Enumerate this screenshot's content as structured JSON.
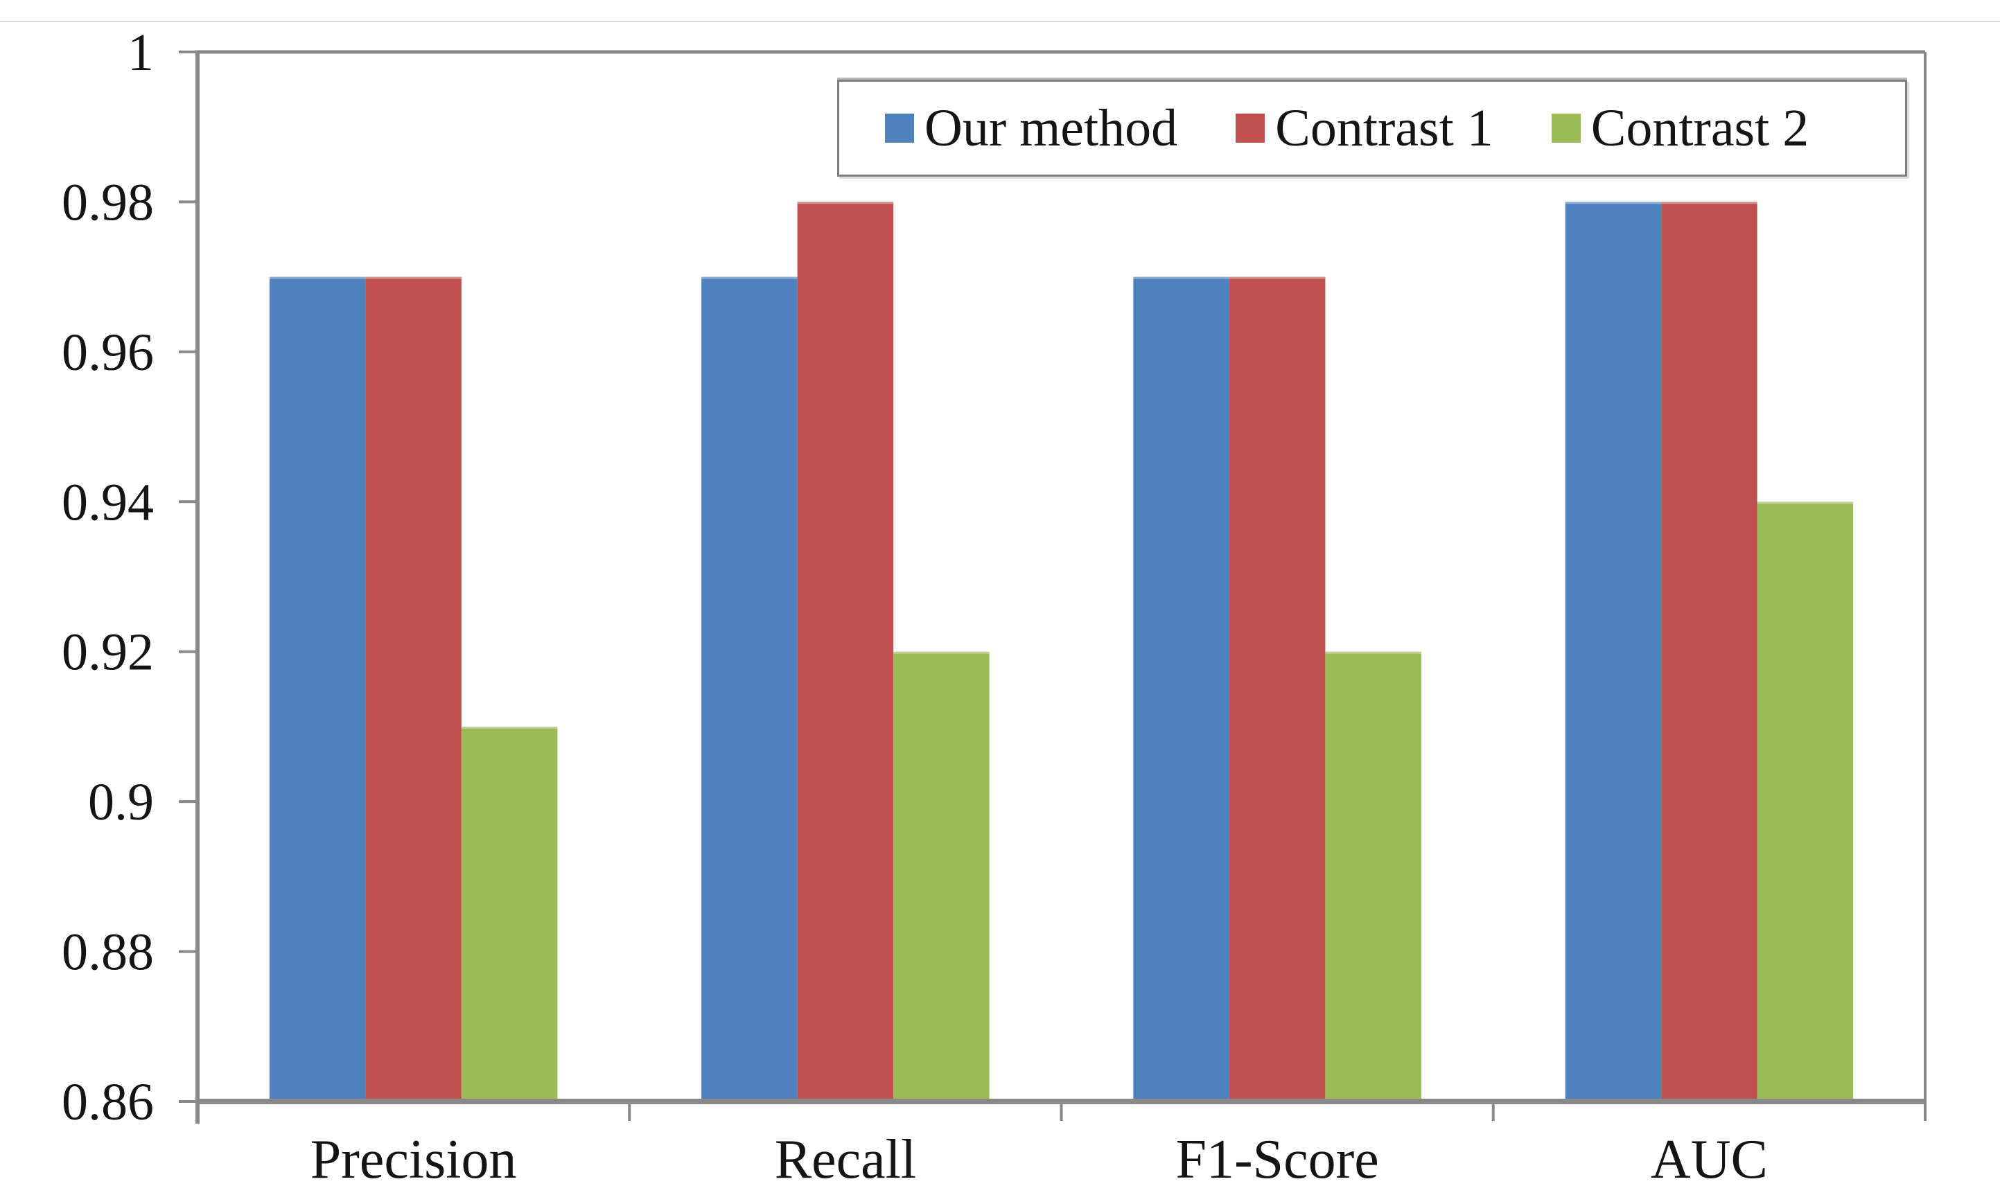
{
  "chart_data": {
    "type": "bar",
    "title": "",
    "xlabel": "",
    "ylabel": "",
    "categories": [
      "Precision",
      "Recall",
      "F1-Score",
      "AUC"
    ],
    "series": [
      {
        "name": "Our method",
        "color": "#4F81BD",
        "values": [
          0.97,
          0.97,
          0.97,
          0.98
        ]
      },
      {
        "name": "Contrast 1",
        "color": "#C0504D",
        "values": [
          0.97,
          0.98,
          0.97,
          0.98
        ]
      },
      {
        "name": "Contrast 2",
        "color": "#9BBB59",
        "values": [
          0.91,
          0.92,
          0.92,
          0.94
        ]
      }
    ],
    "ylim": [
      0.86,
      1.0
    ],
    "ytick_step": 0.02,
    "ytick_labels": [
      "0.86",
      "0.88",
      "0.9",
      "0.92",
      "0.94",
      "0.96",
      "0.98",
      "1"
    ],
    "grid": false,
    "legend_position": "top-inside",
    "axis_color": "#898989",
    "text_color": "#141414"
  }
}
